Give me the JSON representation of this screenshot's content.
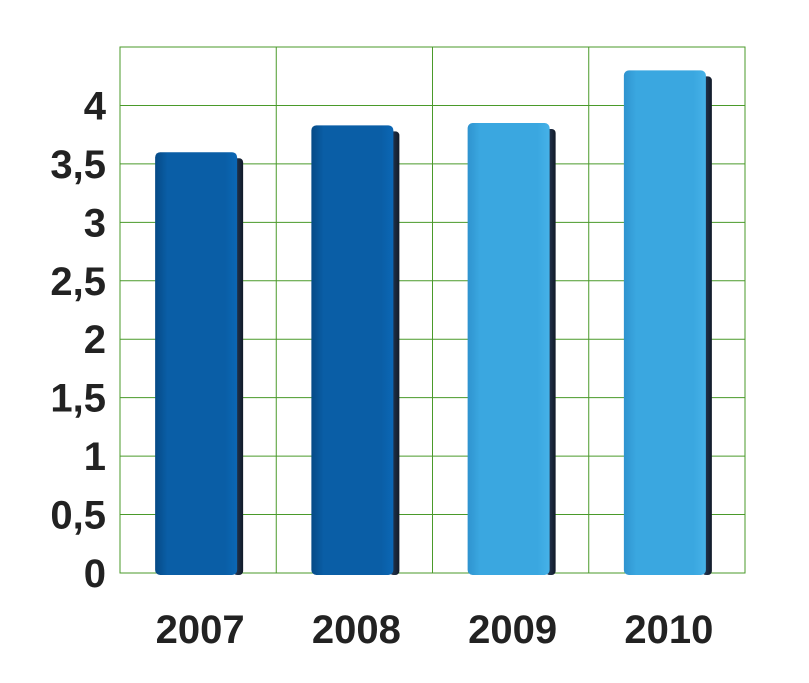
{
  "chart_data": {
    "type": "bar",
    "categories": [
      "2007",
      "2008",
      "2009",
      "2010"
    ],
    "values": [
      3.6,
      3.83,
      3.85,
      4.3
    ],
    "ytick_labels": [
      "0",
      "0,5",
      "1",
      "1,5",
      "2",
      "2,5",
      "3",
      "3,5",
      "4"
    ],
    "yticks": [
      0,
      0.5,
      1,
      1.5,
      2,
      2.5,
      3,
      3.5,
      4
    ],
    "ylim": [
      0,
      4.5
    ],
    "grid": true,
    "title": "",
    "xlabel": "",
    "ylabel": "",
    "colors": {
      "grid": "#4a9a2a",
      "bar_dark": "#0a5ea6",
      "bar_light": "#3aa7e0",
      "bar_side": "#1f3350",
      "text": "#222222"
    },
    "bar_color_keys": [
      "bar_dark",
      "bar_dark",
      "bar_light",
      "bar_light"
    ]
  }
}
